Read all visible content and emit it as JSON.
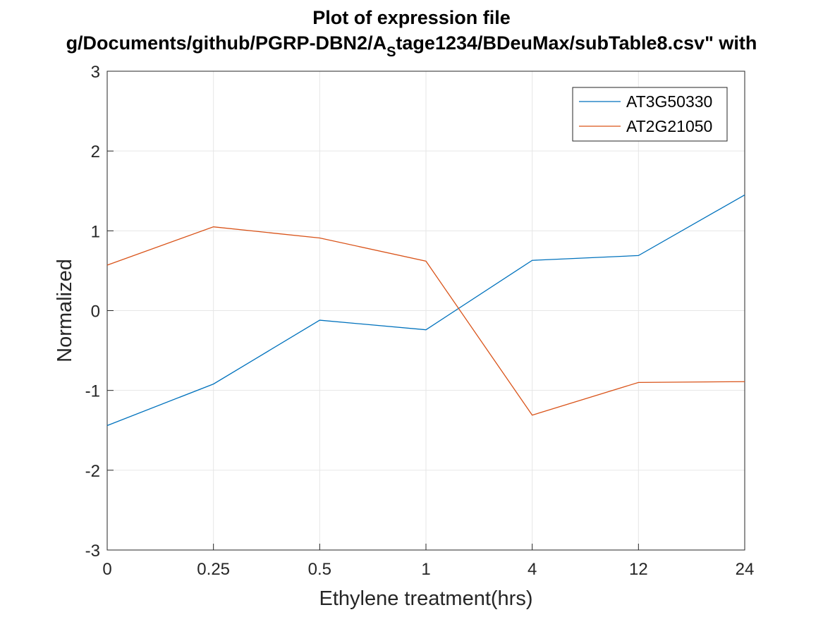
{
  "chart_data": {
    "type": "line",
    "title_line1": "Plot of expression file",
    "title_line2_prefix": "g/Documents/github/PGRP-DBN2/A",
    "title_line2_subscript": "S",
    "title_line2_suffix": "tage1234/BDeuMax/subTable8.csv\" with",
    "xlabel": "Ethylene treatment(hrs)",
    "ylabel": "Normalized",
    "categories": [
      "0",
      "0.25",
      "0.5",
      "1",
      "4",
      "12",
      "24"
    ],
    "yticks": [
      -3,
      -2,
      -1,
      0,
      1,
      2,
      3
    ],
    "ylim": [
      -3,
      3
    ],
    "grid": true,
    "legend_position": "top-right",
    "series": [
      {
        "name": "AT3G50330",
        "color": "#0072BD",
        "values": [
          -1.44,
          -0.92,
          -0.12,
          -0.24,
          0.63,
          0.69,
          1.45
        ]
      },
      {
        "name": "AT2G21050",
        "color": "#D95319",
        "values": [
          0.57,
          1.05,
          0.91,
          0.62,
          -1.31,
          -0.9,
          -0.89
        ]
      }
    ]
  }
}
